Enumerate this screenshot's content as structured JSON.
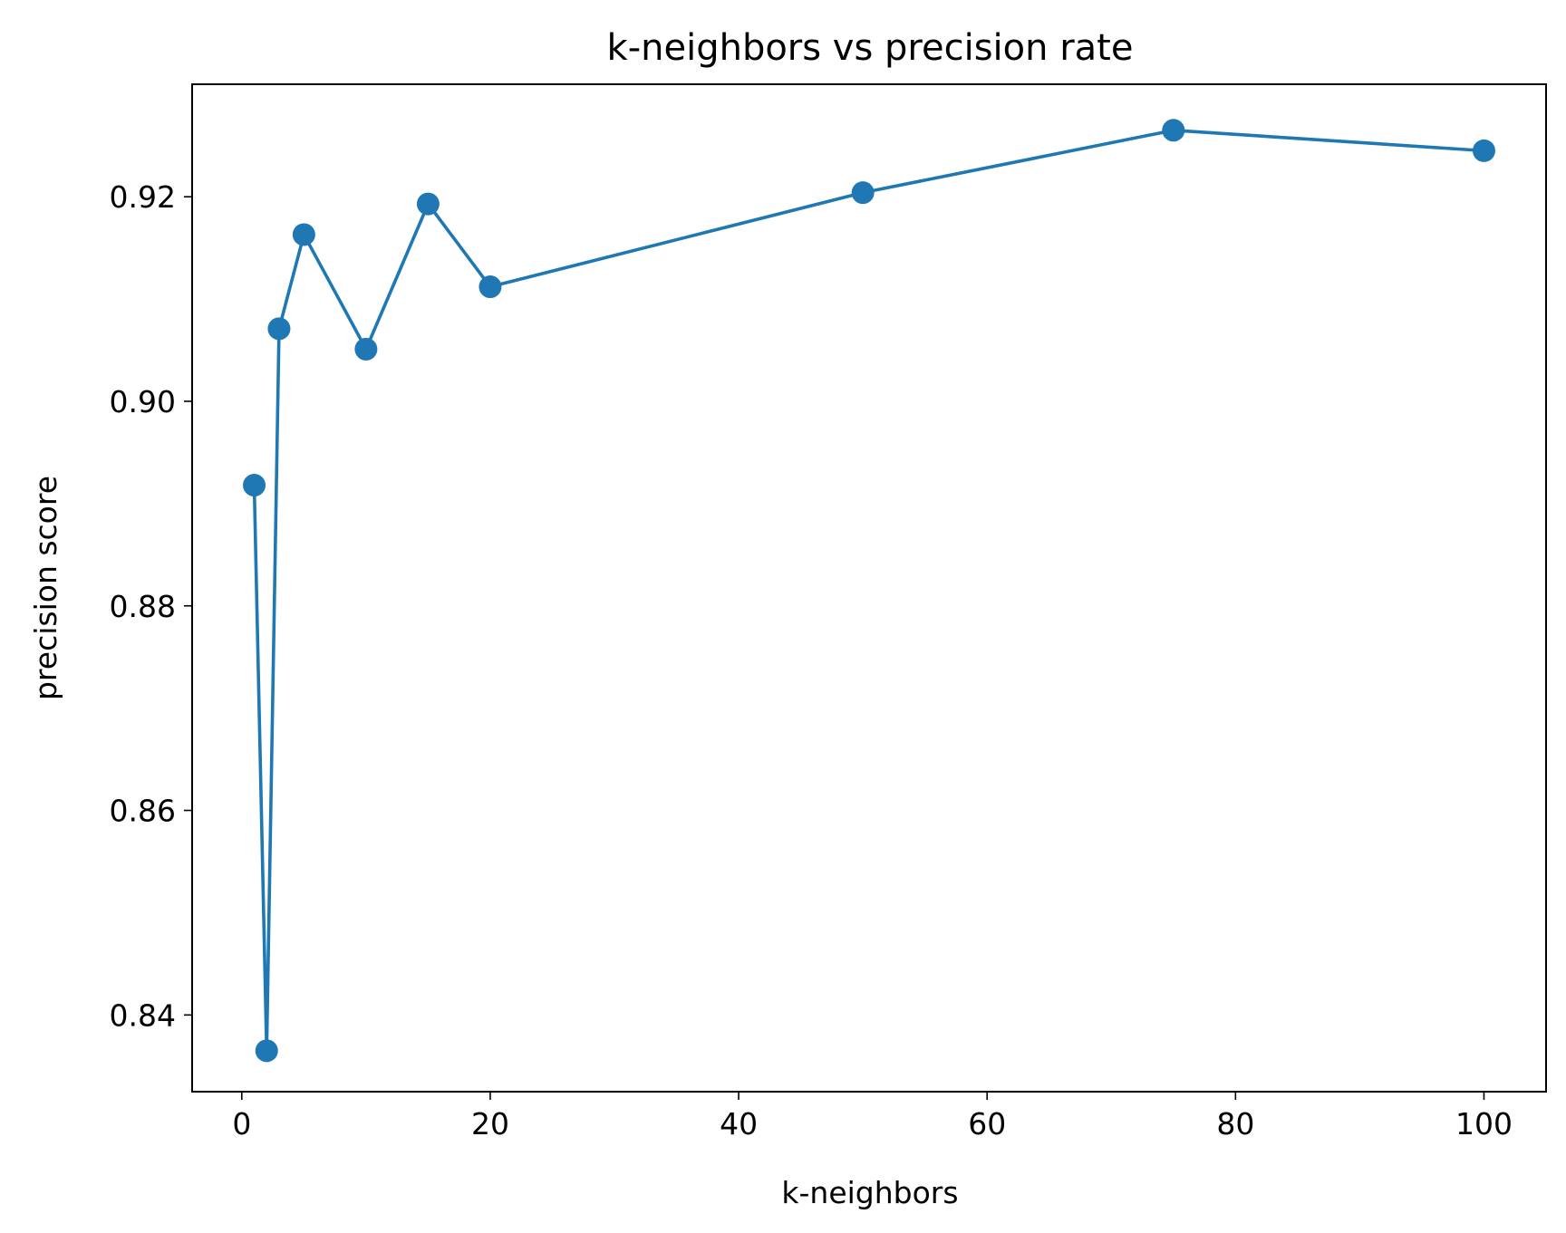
{
  "chart_data": {
    "type": "line",
    "title": "k-neighbors vs precision rate",
    "xlabel": "k-neighbors",
    "ylabel": "precision score",
    "xlim": [
      -4,
      105
    ],
    "ylim": [
      0.8325,
      0.931
    ],
    "xticks": [
      0,
      20,
      40,
      60,
      80,
      100
    ],
    "xtick_labels": [
      "0",
      "20",
      "40",
      "60",
      "80",
      "100"
    ],
    "yticks": [
      0.84,
      0.86,
      0.88,
      0.9,
      0.92
    ],
    "ytick_labels": [
      "0.84",
      "0.86",
      "0.88",
      "0.90",
      "0.92"
    ],
    "grid": false,
    "series": [
      {
        "color": "#1f77b4",
        "marker": "circle",
        "x": [
          1,
          2,
          3,
          5,
          10,
          15,
          20,
          50,
          75,
          100
        ],
        "y": [
          0.8918,
          0.8365,
          0.9071,
          0.9163,
          0.9051,
          0.9193,
          0.9112,
          0.9204,
          0.9265,
          0.9245
        ]
      }
    ]
  }
}
